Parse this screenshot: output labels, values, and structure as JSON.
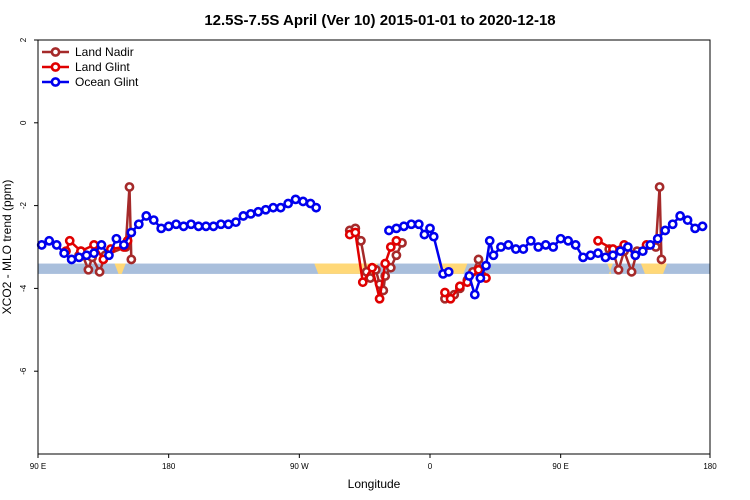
{
  "chart_data": {
    "type": "line",
    "title": "12.5S-7.5S April (Ver 10)   2015-01-01 to 2020-12-18",
    "xlabel": "Longitude",
    "ylabel": "XCO2 - MLO trend (ppm)",
    "xlim": [
      90,
      450
    ],
    "ylim": [
      -8,
      2
    ],
    "x_ticks": [
      {
        "value": 90,
        "label": "90 E"
      },
      {
        "value": 160,
        "label": "180"
      },
      {
        "value": 230,
        "label": "90 W"
      },
      {
        "value": 300,
        "label": "0"
      },
      {
        "value": 370,
        "label": "90 E"
      },
      {
        "value": 450,
        "label": "180"
      }
    ],
    "y_ticks": [
      {
        "value": 2,
        "label": "2"
      },
      {
        "value": 0,
        "label": "0"
      },
      {
        "value": -2,
        "label": "-2"
      },
      {
        "value": -4,
        "label": "-4"
      },
      {
        "value": -6,
        "label": "-6"
      }
    ],
    "grid": false,
    "legend_position": "top-left",
    "band": {
      "y_low": -3.65,
      "y_high": -3.4,
      "color": "#a9bfdc"
    },
    "land_patches": [
      {
        "x_low": 131,
        "x_high": 137,
        "color": "#ffd878"
      },
      {
        "x_low": 238,
        "x_high": 272,
        "color": "#ffd878"
      },
      {
        "x_low": 304,
        "x_high": 320,
        "color": "#ffd878"
      },
      {
        "x_low": 395,
        "x_high": 398,
        "color": "#ffd878"
      },
      {
        "x_low": 413,
        "x_high": 427,
        "color": "#ffd878"
      }
    ],
    "series": [
      {
        "name": "Land Nadir",
        "color": "#a52a2a",
        "segments": [
          [
            [
              112,
              -3.2
            ],
            [
              113,
              -3.1
            ],
            [
              117,
              -3.55
            ],
            [
              119,
              -3.25
            ],
            [
              123,
              -3.6
            ],
            [
              126,
              -3.2
            ],
            [
              137,
              -3.0
            ],
            [
              139,
              -1.55
            ],
            [
              140,
              -3.3
            ]
          ],
          [
            [
              257,
              -2.6
            ],
            [
              260,
              -2.55
            ],
            [
              263,
              -2.85
            ],
            [
              266,
              -3.6
            ],
            [
              268,
              -3.75
            ],
            [
              271,
              -3.55
            ],
            [
              273,
              -3.9
            ],
            [
              275,
              -4.05
            ],
            [
              276,
              -3.7
            ],
            [
              279,
              -3.5
            ],
            [
              282,
              -3.2
            ],
            [
              285,
              -2.9
            ]
          ],
          [
            [
              308,
              -4.25
            ],
            [
              313,
              -4.15
            ],
            [
              316,
              -4.0
            ],
            [
              320,
              -3.8
            ],
            [
              323,
              -3.6
            ],
            [
              326,
              -3.3
            ],
            [
              328,
              -3.7
            ]
          ],
          [
            [
              396,
              -3.05
            ],
            [
              398,
              -3.1
            ],
            [
              401,
              -3.55
            ],
            [
              404,
              -3.1
            ],
            [
              408,
              -3.6
            ],
            [
              411,
              -3.1
            ],
            [
              421,
              -3.0
            ],
            [
              423,
              -1.55
            ],
            [
              424,
              -3.3
            ]
          ]
        ]
      },
      {
        "name": "Land Glint",
        "color": "#e00000",
        "segments": [
          [
            [
              105,
              -3.1
            ],
            [
              107,
              -2.85
            ],
            [
              113,
              -3.1
            ],
            [
              120,
              -2.95
            ],
            [
              125,
              -3.3
            ],
            [
              129,
              -3.05
            ],
            [
              136,
              -3.0
            ],
            [
              138,
              -2.85
            ]
          ],
          [
            [
              257,
              -2.7
            ],
            [
              260,
              -2.65
            ],
            [
              264,
              -3.85
            ],
            [
              269,
              -3.5
            ],
            [
              273,
              -4.25
            ],
            [
              276,
              -3.4
            ],
            [
              279,
              -3.0
            ],
            [
              282,
              -2.85
            ]
          ],
          [
            [
              308,
              -4.1
            ],
            [
              311,
              -4.25
            ],
            [
              316,
              -3.95
            ],
            [
              320,
              -3.85
            ],
            [
              326,
              -3.55
            ],
            [
              330,
              -3.75
            ]
          ],
          [
            [
              390,
              -2.85
            ],
            [
              398,
              -3.05
            ],
            [
              404,
              -2.95
            ],
            [
              410,
              -3.2
            ],
            [
              416,
              -2.95
            ]
          ]
        ]
      },
      {
        "name": "Ocean Glint",
        "color": "#0000ee",
        "segments": [
          [
            [
              92,
              -2.95
            ],
            [
              96,
              -2.85
            ],
            [
              100,
              -2.95
            ],
            [
              104,
              -3.15
            ],
            [
              108,
              -3.3
            ],
            [
              112,
              -3.25
            ],
            [
              116,
              -3.2
            ],
            [
              120,
              -3.15
            ],
            [
              124,
              -2.95
            ],
            [
              128,
              -3.2
            ],
            [
              132,
              -2.8
            ],
            [
              136,
              -2.95
            ],
            [
              140,
              -2.65
            ],
            [
              144,
              -2.45
            ],
            [
              148,
              -2.25
            ],
            [
              152,
              -2.35
            ],
            [
              156,
              -2.55
            ],
            [
              160,
              -2.5
            ],
            [
              164,
              -2.45
            ],
            [
              168,
              -2.5
            ],
            [
              172,
              -2.45
            ],
            [
              176,
              -2.5
            ],
            [
              180,
              -2.5
            ],
            [
              184,
              -2.5
            ],
            [
              188,
              -2.45
            ],
            [
              192,
              -2.45
            ],
            [
              196,
              -2.4
            ],
            [
              200,
              -2.25
            ],
            [
              204,
              -2.2
            ],
            [
              208,
              -2.15
            ],
            [
              212,
              -2.1
            ],
            [
              216,
              -2.05
            ],
            [
              220,
              -2.05
            ],
            [
              224,
              -1.95
            ],
            [
              228,
              -1.85
            ],
            [
              232,
              -1.9
            ],
            [
              236,
              -1.95
            ],
            [
              239,
              -2.05
            ]
          ],
          [
            [
              278,
              -2.6
            ],
            [
              282,
              -2.55
            ],
            [
              286,
              -2.5
            ],
            [
              290,
              -2.45
            ],
            [
              294,
              -2.45
            ],
            [
              297,
              -2.7
            ],
            [
              300,
              -2.55
            ],
            [
              302,
              -2.75
            ],
            [
              307,
              -3.65
            ],
            [
              310,
              -3.6
            ]
          ],
          [
            [
              321,
              -3.7
            ],
            [
              324,
              -4.15
            ],
            [
              327,
              -3.75
            ],
            [
              330,
              -3.45
            ],
            [
              332,
              -2.85
            ],
            [
              334,
              -3.2
            ],
            [
              338,
              -3.0
            ],
            [
              342,
              -2.95
            ],
            [
              346,
              -3.05
            ],
            [
              350,
              -3.05
            ],
            [
              354,
              -2.85
            ],
            [
              358,
              -3.0
            ],
            [
              362,
              -2.95
            ],
            [
              366,
              -3.0
            ],
            [
              370,
              -2.8
            ],
            [
              374,
              -2.85
            ],
            [
              378,
              -2.95
            ],
            [
              382,
              -3.25
            ],
            [
              386,
              -3.2
            ],
            [
              390,
              -3.15
            ],
            [
              394,
              -3.25
            ],
            [
              398,
              -3.2
            ],
            [
              402,
              -3.1
            ],
            [
              406,
              -3.0
            ],
            [
              410,
              -3.2
            ],
            [
              414,
              -3.1
            ],
            [
              418,
              -2.95
            ],
            [
              422,
              -2.8
            ],
            [
              426,
              -2.6
            ],
            [
              430,
              -2.45
            ],
            [
              434,
              -2.25
            ],
            [
              438,
              -2.35
            ],
            [
              442,
              -2.55
            ],
            [
              446,
              -2.5
            ]
          ]
        ]
      }
    ]
  }
}
